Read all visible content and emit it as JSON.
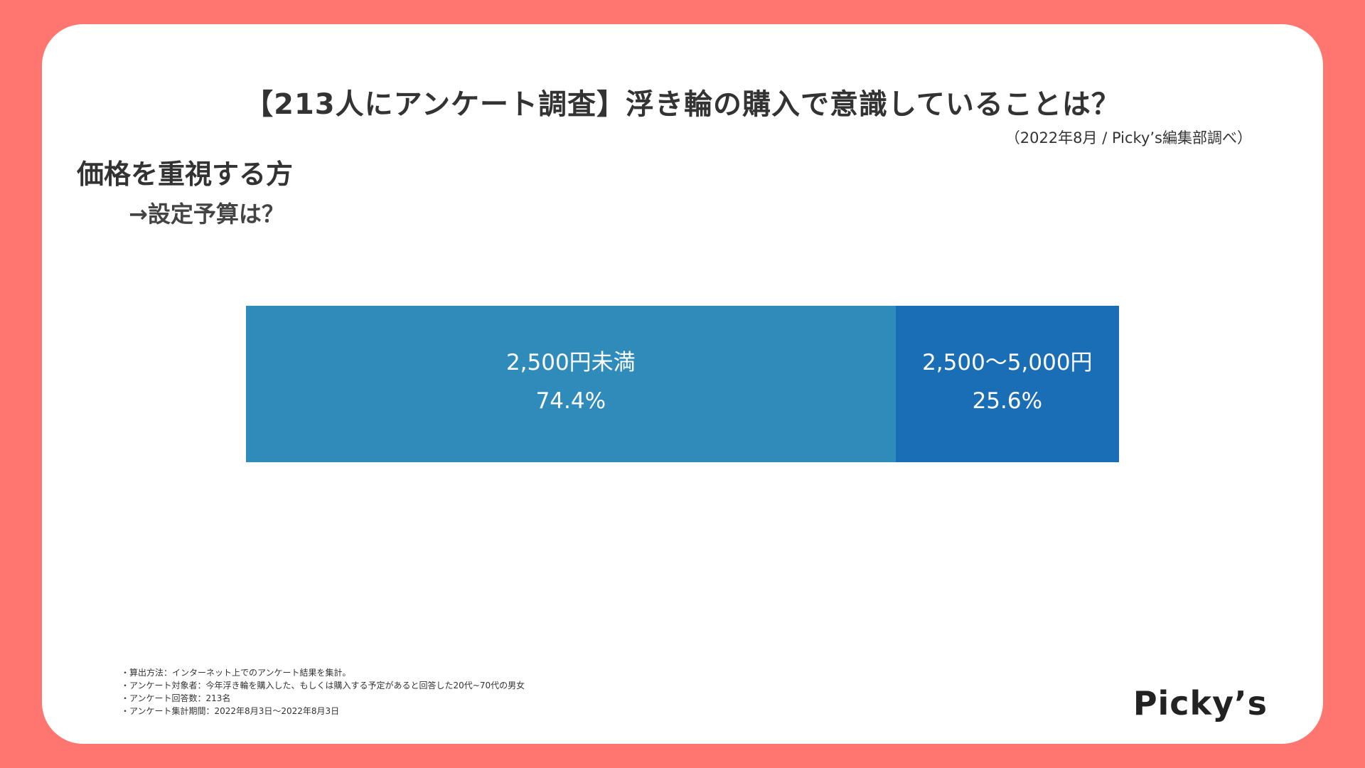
{
  "colors": {
    "background": "#FF7671",
    "card": "#FFFFFF",
    "segment_1": "#2E8BBA",
    "segment_2": "#1A6EB5",
    "segment_text": "#FFFFFF"
  },
  "header": {
    "title": "【213人にアンケート調査】浮き輪の購入で意識していることは？",
    "source": "（2022年8月 / Picky’s編集部調べ）"
  },
  "section": {
    "heading": "価格を重視する方",
    "subheading": "→設定予算は？"
  },
  "chart_data": {
    "type": "bar",
    "orientation": "horizontal-stacked",
    "categories": [
      "2,500円未満",
      "2,500〜5,000円"
    ],
    "values": [
      74.4,
      25.6
    ],
    "value_labels": [
      "74.4%",
      "25.6%"
    ],
    "unit": "%",
    "title": "",
    "xlabel": "",
    "ylabel": ""
  },
  "notes": [
    "・算出方法：インターネット上でのアンケート結果を集計。",
    "・アンケート対象者：今年浮き輪を購入した、もしくは購入する予定があると回答した20代~70代の男女",
    "・アンケート回答数：213名",
    "・アンケート集計期間：2022年8月3日〜2022年8月3日"
  ],
  "brand": {
    "logo_text": "Picky’s"
  }
}
